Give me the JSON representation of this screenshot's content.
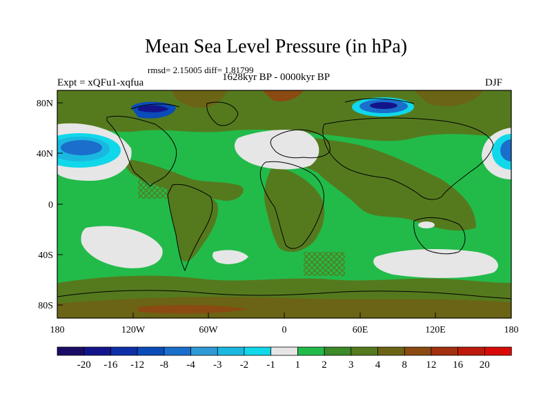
{
  "title": "Mean Sea Level Pressure (in hPa)",
  "stats_line": "rmsd= 2.15005 diff= 1.81799",
  "period_line": "1628kyr BP - 0000kyr BP",
  "expt_label": "Expt = xQFu1-xqfua",
  "season_label": "DJF",
  "lat_labels": [
    "80N",
    "40N",
    "0",
    "40S",
    "80S"
  ],
  "lon_labels": [
    "180",
    "120W",
    "60W",
    "0",
    "60E",
    "120E",
    "180"
  ],
  "colorbar": {
    "tick_labels": [
      "-20",
      "-16",
      "-12",
      "-8",
      "-4",
      "-3",
      "-2",
      "-1",
      "1",
      "2",
      "3",
      "4",
      "8",
      "12",
      "16",
      "20"
    ],
    "colors": [
      "#1a0d66",
      "#14148a",
      "#0d2ea6",
      "#0a4cb8",
      "#1a6ecc",
      "#2e9ad6",
      "#1ab8e0",
      "#10d8ea",
      "#e6e6e6",
      "#22bb4a",
      "#3c8a28",
      "#557a1e",
      "#6b6414",
      "#8a4a12",
      "#a3300e",
      "#be1a0c",
      "#d80a08"
    ]
  }
}
